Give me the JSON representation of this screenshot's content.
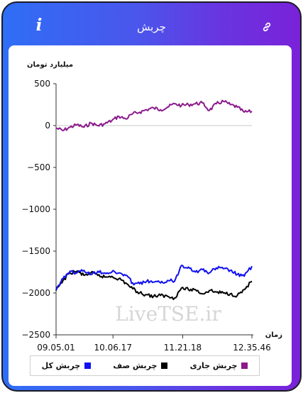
{
  "header": {
    "title": "چربش",
    "info_icon": "info-icon",
    "link_icon": "link-icon"
  },
  "colors": {
    "header_gradient_start": "#2f6ef6",
    "header_gradient_end": "#7a22d8",
    "current": "#8b1a8b",
    "queue": "#000000",
    "total": "#1010f0"
  },
  "watermark": "LiveTSE.ir",
  "chart_data": {
    "type": "line",
    "ylabel": "میلیارد تومان",
    "xlabel": "زمان",
    "ylim": [
      -2500,
      500
    ],
    "yticks": [
      500,
      0,
      -500,
      -1000,
      -1500,
      -2000,
      -2500
    ],
    "ytick_labels": [
      "500",
      "0",
      "−500",
      "−1000",
      "−1500",
      "−2000",
      "−2500"
    ],
    "xticks": [
      "09.05.01",
      "10.06.17",
      "11.21.18",
      "12.35.46"
    ],
    "xlim": [
      "09.05.01",
      "12.35.46"
    ],
    "zero_line": true,
    "legend_position": "bottom",
    "series": [
      {
        "name": "چربش جاری",
        "color": "#8b1a8b",
        "x": [
          "09.05.01",
          "09.12.30",
          "09.20.00",
          "09.27.30",
          "09.35.00",
          "09.42.30",
          "09.50.00",
          "09.57.30",
          "10.05.00",
          "10.12.30",
          "10.20.00",
          "10.27.30",
          "10.35.00",
          "10.42.30",
          "10.50.00",
          "10.57.30",
          "11.05.00",
          "11.12.30",
          "11.20.00",
          "11.27.30",
          "11.35.00",
          "11.42.30",
          "11.50.00",
          "11.57.30",
          "12.05.00",
          "12.12.30",
          "12.20.00",
          "12.27.30",
          "12.35.46"
        ],
        "y": [
          -30,
          -60,
          -20,
          10,
          -20,
          30,
          0,
          20,
          60,
          110,
          80,
          140,
          160,
          190,
          210,
          190,
          220,
          260,
          240,
          250,
          260,
          270,
          180,
          260,
          290,
          250,
          220,
          160,
          170
        ]
      },
      {
        "name": "چربش صف",
        "color": "#000000",
        "x": [
          "09.05.01",
          "09.12.30",
          "09.20.00",
          "09.27.30",
          "09.35.00",
          "09.42.30",
          "09.50.00",
          "09.57.30",
          "10.05.00",
          "10.12.30",
          "10.20.00",
          "10.27.30",
          "10.35.00",
          "10.42.30",
          "10.50.00",
          "10.57.30",
          "11.05.00",
          "11.12.30",
          "11.20.00",
          "11.27.30",
          "11.35.00",
          "11.42.30",
          "11.50.00",
          "11.57.30",
          "12.05.00",
          "12.12.30",
          "12.20.00",
          "12.27.30",
          "12.35.46"
        ],
        "y": [
          -1970,
          -1850,
          -1760,
          -1740,
          -1790,
          -1760,
          -1790,
          -1810,
          -1800,
          -1830,
          -1880,
          -1950,
          -2000,
          -2020,
          -2040,
          -2030,
          -2040,
          -2060,
          -1940,
          -1960,
          -1960,
          -2010,
          -1970,
          -1990,
          -2000,
          -2010,
          -2030,
          -1960,
          -1860
        ]
      },
      {
        "name": "چربش کل",
        "color": "#1010f0",
        "x": [
          "09.05.01",
          "09.12.30",
          "09.20.00",
          "09.27.30",
          "09.35.00",
          "09.42.30",
          "09.50.00",
          "09.57.30",
          "10.05.00",
          "10.12.30",
          "10.20.00",
          "10.27.30",
          "10.35.00",
          "10.42.30",
          "10.50.00",
          "10.57.30",
          "11.05.00",
          "11.12.30",
          "11.20.00",
          "11.27.30",
          "11.35.00",
          "11.42.30",
          "11.50.00",
          "11.57.30",
          "12.05.00",
          "12.12.30",
          "12.20.00",
          "12.27.30",
          "12.35.46"
        ],
        "y": [
          -1960,
          -1830,
          -1740,
          -1760,
          -1730,
          -1780,
          -1740,
          -1760,
          -1750,
          -1760,
          -1790,
          -1880,
          -1890,
          -1860,
          -1870,
          -1880,
          -1850,
          -1860,
          -1670,
          -1690,
          -1750,
          -1720,
          -1760,
          -1700,
          -1710,
          -1730,
          -1780,
          -1800,
          -1680
        ]
      }
    ]
  }
}
